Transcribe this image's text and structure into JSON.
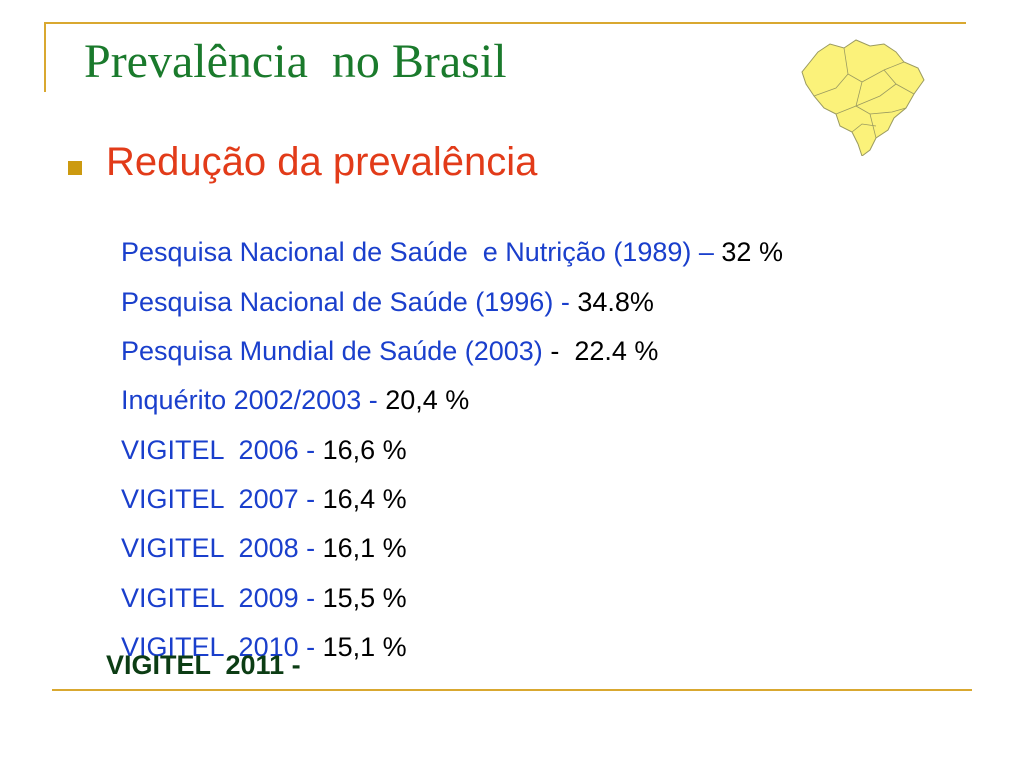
{
  "title": "Prevalência  no Brasil",
  "subheading": "Redução da prevalência",
  "colors": {
    "title": "#1a7a2c",
    "subheading": "#e23b19",
    "item_label": "#1a3fcc",
    "item_value": "#000000",
    "accent_lines": "#d9a830",
    "bullet": "#cc9a10",
    "map_fill": "#fbf27a"
  },
  "map_icon": "brazil-map-icon",
  "items": [
    {
      "label": "Pesquisa Nacional de Saúde  e Nutrição (1989) ",
      "sep": "– ",
      "value": "32 %"
    },
    {
      "label": "Pesquisa Nacional de Saúde (1996) ",
      "sep": "- ",
      "value": "34.8%"
    },
    {
      "label": "Pesquisa Mundial de Saúde (2003) ",
      "sep": "-  ",
      "value": "22.4 %"
    },
    {
      "label": "Inquérito 2002/2003 ",
      "sep": "- ",
      "value": "20,4 %"
    },
    {
      "label": "VIGITEL  2006 ",
      "sep": "- ",
      "value": "16,6 %"
    },
    {
      "label": "VIGITEL  2007 ",
      "sep": "- ",
      "value": "16,4 %"
    },
    {
      "label": "VIGITEL  2008 ",
      "sep": "- ",
      "value": "16,1 %"
    },
    {
      "label": "VIGITEL  2009 ",
      "sep": "- ",
      "value": "15,5 %"
    },
    {
      "label": "VIGITEL  2010 ",
      "sep": "- ",
      "value": "15,1 %"
    }
  ],
  "last_item": "VIGITEL  2011 -"
}
